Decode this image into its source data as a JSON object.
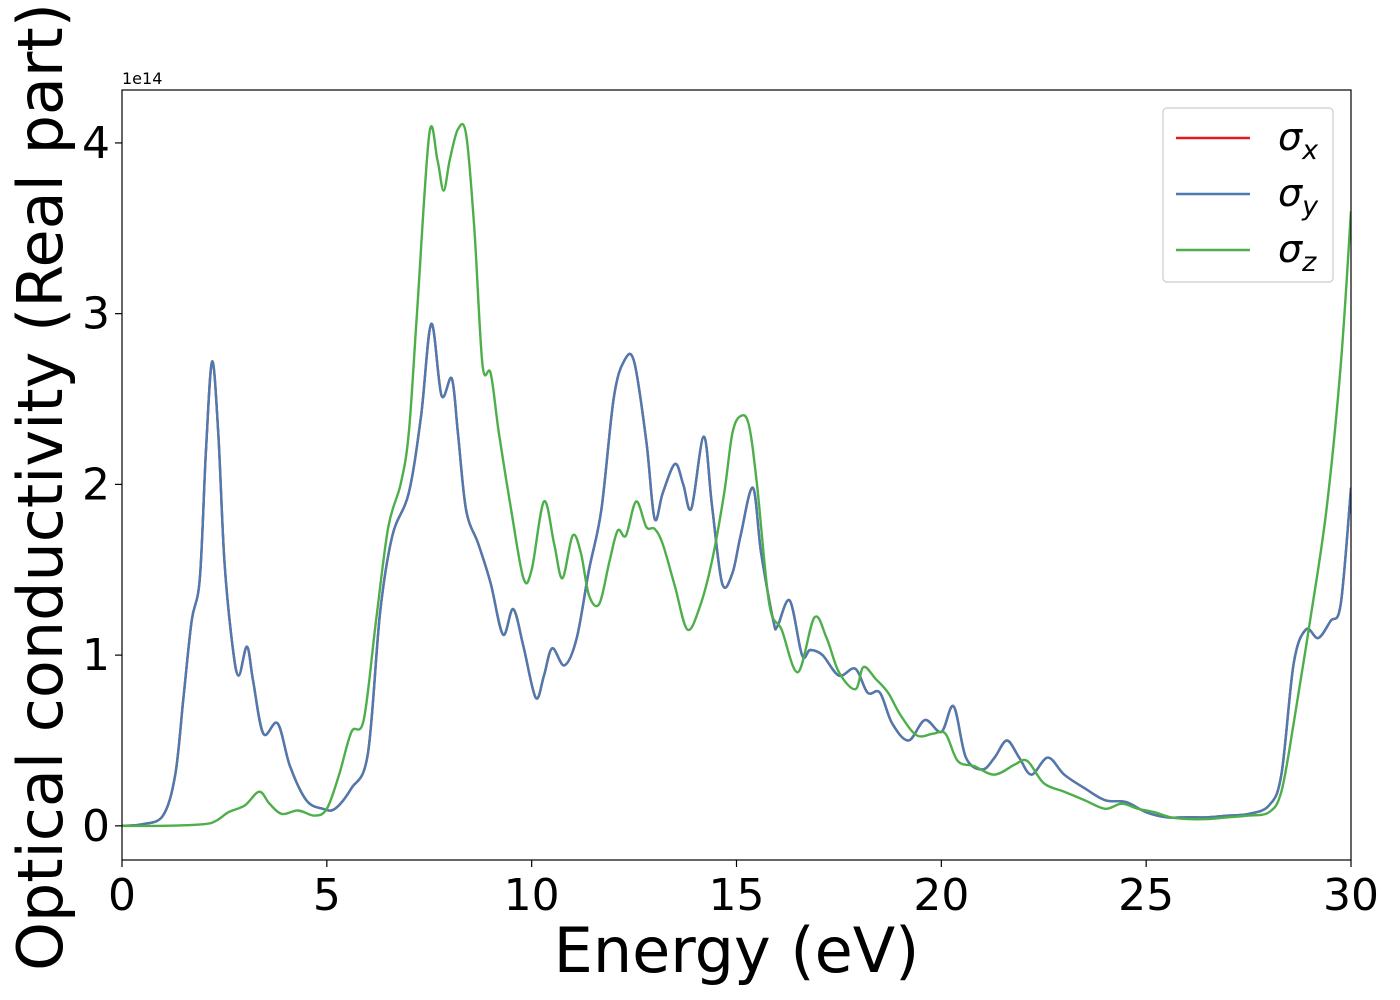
{
  "chart_data": {
    "type": "line",
    "xlabel": "Energy (eV)",
    "ylabel": "Optical conductivity (Real part)",
    "offset_label": "1e14",
    "xlim": [
      0,
      30
    ],
    "ylim": [
      -0.2,
      4.31
    ],
    "x_ticks": [
      0,
      5,
      10,
      15,
      20,
      25,
      30
    ],
    "y_ticks": [
      0,
      1,
      2,
      3,
      4
    ],
    "legend_position": "top-right",
    "grid": false,
    "series": [
      {
        "name": "σx",
        "symbol": "σ",
        "subscript": "x",
        "color": "#e41a1c",
        "points": [
          [
            0,
            0
          ],
          [
            0.5,
            0.01
          ],
          [
            1,
            0.06
          ],
          [
            1.3,
            0.3
          ],
          [
            1.5,
            0.75
          ],
          [
            1.7,
            1.2
          ],
          [
            1.9,
            1.45
          ],
          [
            2.05,
            2.2
          ],
          [
            2.2,
            2.72
          ],
          [
            2.35,
            2.3
          ],
          [
            2.5,
            1.55
          ],
          [
            2.7,
            1.05
          ],
          [
            2.85,
            0.88
          ],
          [
            3.05,
            1.05
          ],
          [
            3.2,
            0.85
          ],
          [
            3.45,
            0.54
          ],
          [
            3.8,
            0.6
          ],
          [
            4.1,
            0.35
          ],
          [
            4.5,
            0.15
          ],
          [
            4.9,
            0.1
          ],
          [
            5.2,
            0.1
          ],
          [
            5.6,
            0.22
          ],
          [
            6.0,
            0.42
          ],
          [
            6.3,
            1.25
          ],
          [
            6.6,
            1.7
          ],
          [
            7.0,
            1.95
          ],
          [
            7.3,
            2.4
          ],
          [
            7.55,
            2.94
          ],
          [
            7.8,
            2.52
          ],
          [
            8.05,
            2.62
          ],
          [
            8.2,
            2.3
          ],
          [
            8.4,
            1.85
          ],
          [
            8.7,
            1.65
          ],
          [
            9.0,
            1.42
          ],
          [
            9.3,
            1.12
          ],
          [
            9.55,
            1.27
          ],
          [
            9.8,
            1.05
          ],
          [
            10.1,
            0.75
          ],
          [
            10.3,
            0.88
          ],
          [
            10.5,
            1.04
          ],
          [
            10.8,
            0.94
          ],
          [
            11.1,
            1.1
          ],
          [
            11.4,
            1.5
          ],
          [
            11.7,
            1.85
          ],
          [
            12.0,
            2.5
          ],
          [
            12.25,
            2.72
          ],
          [
            12.5,
            2.72
          ],
          [
            12.8,
            2.25
          ],
          [
            13.0,
            1.8
          ],
          [
            13.2,
            1.95
          ],
          [
            13.5,
            2.12
          ],
          [
            13.7,
            2.0
          ],
          [
            13.9,
            1.86
          ],
          [
            14.2,
            2.28
          ],
          [
            14.4,
            1.88
          ],
          [
            14.65,
            1.42
          ],
          [
            14.9,
            1.48
          ],
          [
            15.1,
            1.7
          ],
          [
            15.4,
            1.98
          ],
          [
            15.6,
            1.6
          ],
          [
            15.9,
            1.2
          ],
          [
            16.0,
            1.17
          ],
          [
            16.3,
            1.32
          ],
          [
            16.6,
            1.0
          ],
          [
            16.8,
            1.03
          ],
          [
            17.1,
            1.0
          ],
          [
            17.5,
            0.88
          ],
          [
            17.9,
            0.92
          ],
          [
            18.2,
            0.78
          ],
          [
            18.5,
            0.78
          ],
          [
            18.8,
            0.6
          ],
          [
            19.2,
            0.5
          ],
          [
            19.6,
            0.62
          ],
          [
            20.0,
            0.55
          ],
          [
            20.3,
            0.7
          ],
          [
            20.6,
            0.4
          ],
          [
            21.0,
            0.33
          ],
          [
            21.3,
            0.4
          ],
          [
            21.6,
            0.5
          ],
          [
            21.9,
            0.4
          ],
          [
            22.2,
            0.3
          ],
          [
            22.6,
            0.4
          ],
          [
            23.0,
            0.3
          ],
          [
            23.5,
            0.22
          ],
          [
            24.0,
            0.15
          ],
          [
            24.5,
            0.14
          ],
          [
            25.0,
            0.08
          ],
          [
            25.5,
            0.05
          ],
          [
            26.0,
            0.05
          ],
          [
            26.5,
            0.05
          ],
          [
            27.0,
            0.06
          ],
          [
            27.5,
            0.07
          ],
          [
            28.0,
            0.12
          ],
          [
            28.3,
            0.3
          ],
          [
            28.6,
            0.95
          ],
          [
            28.9,
            1.15
          ],
          [
            29.2,
            1.1
          ],
          [
            29.5,
            1.2
          ],
          [
            29.75,
            1.3
          ],
          [
            30.0,
            1.98
          ]
        ]
      },
      {
        "name": "σy",
        "symbol": "σ",
        "subscript": "y",
        "color": "#4b7bb0",
        "points": [
          [
            0,
            0
          ],
          [
            0.5,
            0.01
          ],
          [
            1,
            0.06
          ],
          [
            1.3,
            0.3
          ],
          [
            1.5,
            0.75
          ],
          [
            1.7,
            1.2
          ],
          [
            1.9,
            1.45
          ],
          [
            2.05,
            2.2
          ],
          [
            2.2,
            2.72
          ],
          [
            2.35,
            2.3
          ],
          [
            2.5,
            1.55
          ],
          [
            2.7,
            1.05
          ],
          [
            2.85,
            0.88
          ],
          [
            3.05,
            1.05
          ],
          [
            3.2,
            0.85
          ],
          [
            3.45,
            0.54
          ],
          [
            3.8,
            0.6
          ],
          [
            4.1,
            0.35
          ],
          [
            4.5,
            0.15
          ],
          [
            4.9,
            0.1
          ],
          [
            5.2,
            0.1
          ],
          [
            5.6,
            0.22
          ],
          [
            6.0,
            0.42
          ],
          [
            6.3,
            1.25
          ],
          [
            6.6,
            1.7
          ],
          [
            7.0,
            1.95
          ],
          [
            7.3,
            2.4
          ],
          [
            7.55,
            2.94
          ],
          [
            7.8,
            2.52
          ],
          [
            8.05,
            2.62
          ],
          [
            8.2,
            2.3
          ],
          [
            8.4,
            1.85
          ],
          [
            8.7,
            1.65
          ],
          [
            9.0,
            1.42
          ],
          [
            9.3,
            1.12
          ],
          [
            9.55,
            1.27
          ],
          [
            9.8,
            1.05
          ],
          [
            10.1,
            0.75
          ],
          [
            10.3,
            0.88
          ],
          [
            10.5,
            1.04
          ],
          [
            10.8,
            0.94
          ],
          [
            11.1,
            1.1
          ],
          [
            11.4,
            1.5
          ],
          [
            11.7,
            1.85
          ],
          [
            12.0,
            2.5
          ],
          [
            12.25,
            2.72
          ],
          [
            12.5,
            2.72
          ],
          [
            12.8,
            2.25
          ],
          [
            13.0,
            1.8
          ],
          [
            13.2,
            1.95
          ],
          [
            13.5,
            2.12
          ],
          [
            13.7,
            2.0
          ],
          [
            13.9,
            1.86
          ],
          [
            14.2,
            2.28
          ],
          [
            14.4,
            1.88
          ],
          [
            14.65,
            1.42
          ],
          [
            14.9,
            1.48
          ],
          [
            15.1,
            1.7
          ],
          [
            15.4,
            1.98
          ],
          [
            15.6,
            1.6
          ],
          [
            15.9,
            1.2
          ],
          [
            16.0,
            1.17
          ],
          [
            16.3,
            1.32
          ],
          [
            16.6,
            1.0
          ],
          [
            16.8,
            1.03
          ],
          [
            17.1,
            1.0
          ],
          [
            17.5,
            0.88
          ],
          [
            17.9,
            0.92
          ],
          [
            18.2,
            0.78
          ],
          [
            18.5,
            0.78
          ],
          [
            18.8,
            0.6
          ],
          [
            19.2,
            0.5
          ],
          [
            19.6,
            0.62
          ],
          [
            20.0,
            0.55
          ],
          [
            20.3,
            0.7
          ],
          [
            20.6,
            0.4
          ],
          [
            21.0,
            0.33
          ],
          [
            21.3,
            0.4
          ],
          [
            21.6,
            0.5
          ],
          [
            21.9,
            0.4
          ],
          [
            22.2,
            0.3
          ],
          [
            22.6,
            0.4
          ],
          [
            23.0,
            0.3
          ],
          [
            23.5,
            0.22
          ],
          [
            24.0,
            0.15
          ],
          [
            24.5,
            0.14
          ],
          [
            25.0,
            0.08
          ],
          [
            25.5,
            0.05
          ],
          [
            26.0,
            0.05
          ],
          [
            26.5,
            0.05
          ],
          [
            27.0,
            0.06
          ],
          [
            27.5,
            0.07
          ],
          [
            28.0,
            0.12
          ],
          [
            28.3,
            0.3
          ],
          [
            28.6,
            0.95
          ],
          [
            28.9,
            1.15
          ],
          [
            29.2,
            1.1
          ],
          [
            29.5,
            1.2
          ],
          [
            29.75,
            1.3
          ],
          [
            30.0,
            1.98
          ]
        ]
      },
      {
        "name": "σz",
        "symbol": "σ",
        "subscript": "z",
        "color": "#4daf4a",
        "points": [
          [
            0,
            0
          ],
          [
            1,
            0
          ],
          [
            2,
            0.01
          ],
          [
            2.3,
            0.03
          ],
          [
            2.6,
            0.08
          ],
          [
            3.0,
            0.12
          ],
          [
            3.35,
            0.2
          ],
          [
            3.6,
            0.13
          ],
          [
            3.9,
            0.07
          ],
          [
            4.3,
            0.09
          ],
          [
            4.7,
            0.06
          ],
          [
            5.0,
            0.1
          ],
          [
            5.3,
            0.3
          ],
          [
            5.6,
            0.55
          ],
          [
            5.9,
            0.62
          ],
          [
            6.2,
            1.2
          ],
          [
            6.5,
            1.75
          ],
          [
            6.8,
            2.0
          ],
          [
            7.0,
            2.3
          ],
          [
            7.2,
            3.0
          ],
          [
            7.5,
            4.05
          ],
          [
            7.7,
            3.9
          ],
          [
            7.85,
            3.72
          ],
          [
            8.0,
            3.9
          ],
          [
            8.2,
            4.08
          ],
          [
            8.4,
            4.05
          ],
          [
            8.6,
            3.5
          ],
          [
            8.8,
            2.7
          ],
          [
            9.0,
            2.65
          ],
          [
            9.2,
            2.3
          ],
          [
            9.5,
            1.85
          ],
          [
            9.8,
            1.45
          ],
          [
            10.0,
            1.5
          ],
          [
            10.3,
            1.9
          ],
          [
            10.55,
            1.65
          ],
          [
            10.75,
            1.45
          ],
          [
            11.0,
            1.7
          ],
          [
            11.2,
            1.6
          ],
          [
            11.4,
            1.35
          ],
          [
            11.65,
            1.3
          ],
          [
            11.9,
            1.55
          ],
          [
            12.1,
            1.73
          ],
          [
            12.3,
            1.7
          ],
          [
            12.55,
            1.9
          ],
          [
            12.8,
            1.75
          ],
          [
            13.0,
            1.74
          ],
          [
            13.2,
            1.65
          ],
          [
            13.5,
            1.4
          ],
          [
            13.8,
            1.15
          ],
          [
            14.1,
            1.28
          ],
          [
            14.4,
            1.55
          ],
          [
            14.7,
            1.95
          ],
          [
            14.9,
            2.3
          ],
          [
            15.1,
            2.4
          ],
          [
            15.3,
            2.35
          ],
          [
            15.5,
            2.0
          ],
          [
            15.8,
            1.3
          ],
          [
            16.1,
            1.15
          ],
          [
            16.5,
            0.9
          ],
          [
            16.9,
            1.22
          ],
          [
            17.2,
            1.1
          ],
          [
            17.5,
            0.9
          ],
          [
            17.9,
            0.8
          ],
          [
            18.1,
            0.93
          ],
          [
            18.4,
            0.86
          ],
          [
            18.7,
            0.78
          ],
          [
            19.0,
            0.65
          ],
          [
            19.4,
            0.53
          ],
          [
            19.8,
            0.54
          ],
          [
            20.1,
            0.54
          ],
          [
            20.4,
            0.38
          ],
          [
            20.8,
            0.35
          ],
          [
            21.3,
            0.3
          ],
          [
            21.8,
            0.36
          ],
          [
            22.1,
            0.38
          ],
          [
            22.5,
            0.25
          ],
          [
            23.0,
            0.2
          ],
          [
            23.5,
            0.15
          ],
          [
            24.0,
            0.1
          ],
          [
            24.4,
            0.13
          ],
          [
            24.8,
            0.1
          ],
          [
            25.2,
            0.08
          ],
          [
            25.6,
            0.05
          ],
          [
            26.0,
            0.04
          ],
          [
            26.5,
            0.04
          ],
          [
            27.0,
            0.05
          ],
          [
            27.5,
            0.06
          ],
          [
            28.0,
            0.08
          ],
          [
            28.3,
            0.2
          ],
          [
            28.6,
            0.6
          ],
          [
            29.0,
            1.2
          ],
          [
            29.4,
            1.85
          ],
          [
            29.75,
            2.7
          ],
          [
            30.0,
            3.6
          ]
        ]
      }
    ]
  }
}
